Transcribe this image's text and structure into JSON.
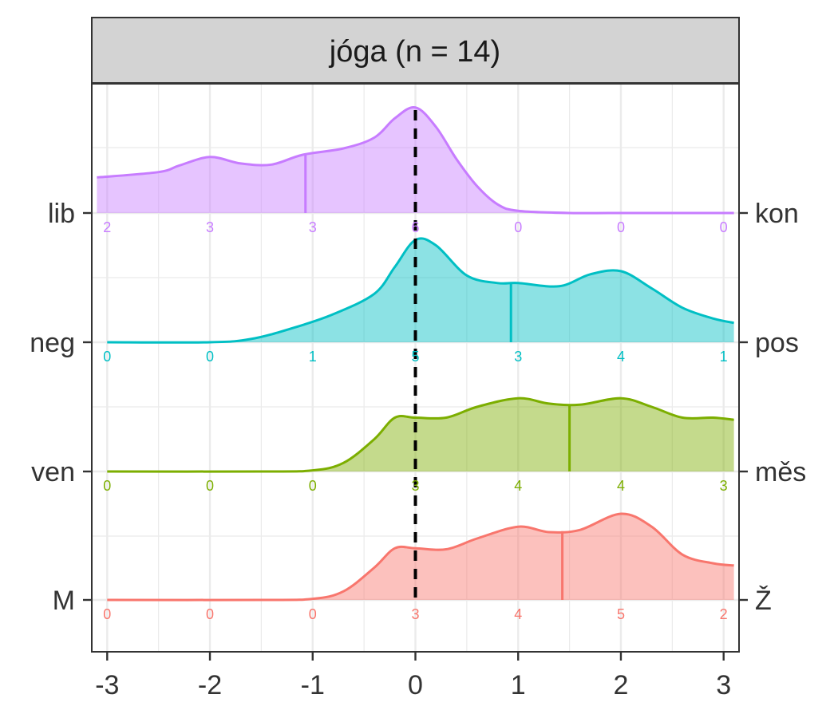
{
  "chart_data": {
    "type": "ridgeline",
    "panel_title": "jóga (n = 14)",
    "xlim": [
      -3.15,
      3.15
    ],
    "x_ticks": [
      "-3",
      "-2",
      "-1",
      "0",
      "1",
      "2",
      "3"
    ],
    "reference_line_x": 0,
    "colors": {
      "strip_bg": "#d3d3d3",
      "grid": "#ebebeb",
      "reference": "#000000"
    },
    "rows": [
      {
        "left_label": "lib",
        "right_label": "kon",
        "color": "#c77cff",
        "mean": -1.07,
        "counts": [
          "2",
          "3",
          "3",
          "6",
          "0",
          "0",
          "0"
        ],
        "density": [
          [
            -3.1,
            0.33
          ],
          [
            -2.5,
            0.38
          ],
          [
            -2.3,
            0.44
          ],
          [
            -2.0,
            0.52
          ],
          [
            -1.7,
            0.46
          ],
          [
            -1.4,
            0.45
          ],
          [
            -1.1,
            0.54
          ],
          [
            -0.7,
            0.6
          ],
          [
            -0.4,
            0.7
          ],
          [
            -0.2,
            0.88
          ],
          [
            0.0,
            0.98
          ],
          [
            0.2,
            0.8
          ],
          [
            0.4,
            0.5
          ],
          [
            0.6,
            0.25
          ],
          [
            0.8,
            0.08
          ],
          [
            1.0,
            0.02
          ],
          [
            1.5,
            0.0
          ],
          [
            2.0,
            0.0
          ],
          [
            3.1,
            0.0
          ]
        ]
      },
      {
        "left_label": "neg",
        "right_label": "pos",
        "color": "#00bfc4",
        "mean": 0.93,
        "counts": [
          "0",
          "0",
          "1",
          "5",
          "3",
          "4",
          "1"
        ],
        "density": [
          [
            -3.0,
            0.0
          ],
          [
            -2.0,
            0.0
          ],
          [
            -1.6,
            0.03
          ],
          [
            -1.2,
            0.13
          ],
          [
            -0.8,
            0.26
          ],
          [
            -0.4,
            0.45
          ],
          [
            -0.2,
            0.7
          ],
          [
            0.0,
            0.95
          ],
          [
            0.2,
            0.9
          ],
          [
            0.5,
            0.62
          ],
          [
            0.8,
            0.55
          ],
          [
            1.0,
            0.55
          ],
          [
            1.4,
            0.52
          ],
          [
            1.7,
            0.63
          ],
          [
            2.0,
            0.66
          ],
          [
            2.3,
            0.5
          ],
          [
            2.6,
            0.32
          ],
          [
            2.9,
            0.22
          ],
          [
            3.1,
            0.18
          ]
        ]
      },
      {
        "left_label": "ven",
        "right_label": "měs",
        "color": "#7cae00",
        "mean": 1.5,
        "counts": [
          "0",
          "0",
          "0",
          "3",
          "4",
          "4",
          "3"
        ],
        "density": [
          [
            -3.0,
            0.0
          ],
          [
            -1.5,
            0.0
          ],
          [
            -1.0,
            0.01
          ],
          [
            -0.7,
            0.08
          ],
          [
            -0.4,
            0.3
          ],
          [
            -0.2,
            0.5
          ],
          [
            0.0,
            0.5
          ],
          [
            0.3,
            0.5
          ],
          [
            0.6,
            0.6
          ],
          [
            1.0,
            0.68
          ],
          [
            1.3,
            0.63
          ],
          [
            1.6,
            0.62
          ],
          [
            2.0,
            0.68
          ],
          [
            2.3,
            0.6
          ],
          [
            2.6,
            0.5
          ],
          [
            2.9,
            0.5
          ],
          [
            3.1,
            0.48
          ]
        ]
      },
      {
        "left_label": "M",
        "right_label": "Ž",
        "color": "#f8766d",
        "mean": 1.43,
        "counts": [
          "0",
          "0",
          "0",
          "3",
          "4",
          "5",
          "2"
        ],
        "density": [
          [
            -3.0,
            0.0
          ],
          [
            -1.5,
            0.0
          ],
          [
            -1.0,
            0.01
          ],
          [
            -0.7,
            0.08
          ],
          [
            -0.4,
            0.3
          ],
          [
            -0.2,
            0.48
          ],
          [
            0.0,
            0.48
          ],
          [
            0.3,
            0.47
          ],
          [
            0.6,
            0.57
          ],
          [
            1.0,
            0.68
          ],
          [
            1.3,
            0.63
          ],
          [
            1.6,
            0.65
          ],
          [
            2.0,
            0.8
          ],
          [
            2.3,
            0.68
          ],
          [
            2.6,
            0.42
          ],
          [
            2.9,
            0.34
          ],
          [
            3.1,
            0.32
          ]
        ]
      }
    ]
  }
}
